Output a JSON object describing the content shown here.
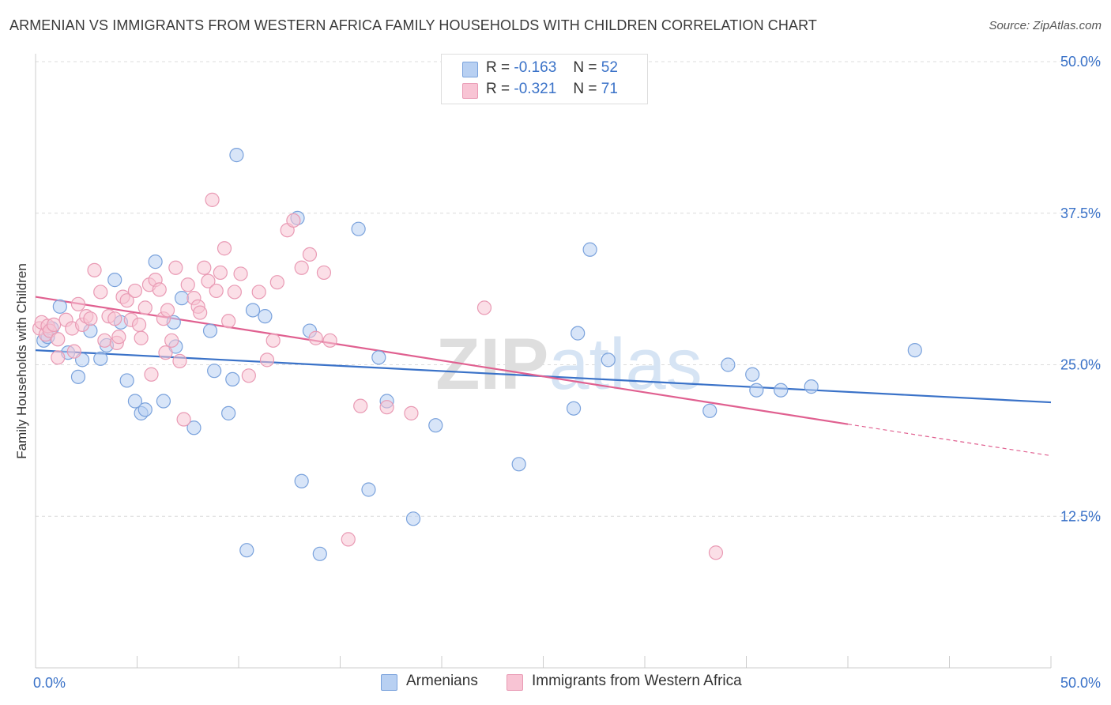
{
  "title": "ARMENIAN VS IMMIGRANTS FROM WESTERN AFRICA FAMILY HOUSEHOLDS WITH CHILDREN CORRELATION CHART",
  "source": "Source: ZipAtlas.com",
  "watermark": "ZIPatlas",
  "stats": [
    {
      "r_label": "R =",
      "r_value": "-0.163",
      "n_label": "N =",
      "n_value": "52",
      "color": "#b8d0f2"
    },
    {
      "r_label": "R =",
      "r_value": "-0.321",
      "n_label": "N =",
      "n_value": "71",
      "color": "#f8c4d4"
    }
  ],
  "legend": [
    {
      "label": "Armenians",
      "color": "#b8d0f2"
    },
    {
      "label": "Immigrants from Western Africa",
      "color": "#f8c4d4"
    }
  ],
  "chart_data": {
    "type": "scatter",
    "xlabel": "",
    "ylabel": "Family Households with Children",
    "xlim": [
      0,
      50
    ],
    "ylim": [
      0,
      50
    ],
    "x_tick_labels": [
      "0.0%",
      "50.0%"
    ],
    "y_ticks": [
      12.5,
      25.0,
      37.5,
      50.0
    ],
    "y_tick_labels": [
      "12.5%",
      "25.0%",
      "37.5%",
      "50.0%"
    ],
    "grid": "horizontal dashed",
    "legend_position": "bottom",
    "series": [
      {
        "name": "Armenians",
        "color": "#3a72c8",
        "fill": "#b8d0f2",
        "points": [
          [
            0.4,
            27.0
          ],
          [
            0.6,
            27.3
          ],
          [
            0.8,
            28.0
          ],
          [
            1.2,
            29.8
          ],
          [
            1.6,
            26.0
          ],
          [
            2.1,
            24.0
          ],
          [
            2.3,
            25.4
          ],
          [
            2.7,
            27.8
          ],
          [
            3.2,
            25.5
          ],
          [
            3.5,
            26.6
          ],
          [
            3.9,
            32.0
          ],
          [
            4.2,
            28.5
          ],
          [
            4.5,
            23.7
          ],
          [
            4.9,
            22.0
          ],
          [
            5.2,
            21.0
          ],
          [
            5.4,
            21.3
          ],
          [
            5.9,
            33.5
          ],
          [
            6.3,
            22.0
          ],
          [
            6.8,
            28.5
          ],
          [
            6.9,
            26.5
          ],
          [
            7.2,
            30.5
          ],
          [
            7.8,
            19.8
          ],
          [
            8.6,
            27.8
          ],
          [
            8.8,
            24.5
          ],
          [
            9.5,
            21.0
          ],
          [
            9.7,
            23.8
          ],
          [
            9.9,
            42.3
          ],
          [
            10.4,
            9.7
          ],
          [
            10.7,
            29.5
          ],
          [
            11.3,
            29.0
          ],
          [
            12.9,
            37.1
          ],
          [
            13.1,
            15.4
          ],
          [
            13.5,
            27.8
          ],
          [
            14.0,
            9.4
          ],
          [
            15.9,
            36.2
          ],
          [
            16.4,
            14.7
          ],
          [
            16.9,
            25.6
          ],
          [
            17.3,
            22.0
          ],
          [
            18.6,
            12.3
          ],
          [
            19.7,
            20.0
          ],
          [
            23.8,
            16.8
          ],
          [
            26.5,
            21.4
          ],
          [
            26.7,
            27.6
          ],
          [
            27.3,
            34.5
          ],
          [
            28.2,
            25.4
          ],
          [
            33.2,
            21.2
          ],
          [
            34.1,
            25.0
          ],
          [
            35.3,
            24.2
          ],
          [
            35.5,
            22.9
          ],
          [
            36.7,
            22.9
          ],
          [
            38.2,
            23.2
          ],
          [
            43.3,
            26.2
          ]
        ]
      },
      {
        "name": "Immigrants from Western Africa",
        "color": "#e06090",
        "fill": "#f8c4d4",
        "points": [
          [
            0.2,
            28.0
          ],
          [
            0.3,
            28.5
          ],
          [
            0.5,
            27.5
          ],
          [
            0.6,
            28.2
          ],
          [
            0.7,
            27.8
          ],
          [
            0.9,
            28.3
          ],
          [
            1.1,
            25.6
          ],
          [
            1.1,
            27.1
          ],
          [
            1.5,
            28.7
          ],
          [
            1.8,
            28.0
          ],
          [
            1.9,
            26.1
          ],
          [
            2.1,
            30.0
          ],
          [
            2.3,
            28.3
          ],
          [
            2.5,
            29.0
          ],
          [
            2.7,
            28.8
          ],
          [
            2.9,
            32.8
          ],
          [
            3.2,
            31.0
          ],
          [
            3.4,
            27.0
          ],
          [
            3.6,
            29.0
          ],
          [
            3.9,
            28.8
          ],
          [
            4.0,
            26.8
          ],
          [
            4.1,
            27.3
          ],
          [
            4.3,
            30.6
          ],
          [
            4.5,
            30.3
          ],
          [
            4.7,
            28.7
          ],
          [
            4.9,
            31.1
          ],
          [
            5.1,
            28.3
          ],
          [
            5.2,
            27.2
          ],
          [
            5.4,
            29.7
          ],
          [
            5.6,
            31.6
          ],
          [
            5.7,
            24.2
          ],
          [
            5.9,
            32.0
          ],
          [
            6.1,
            31.2
          ],
          [
            6.3,
            28.8
          ],
          [
            6.4,
            26.0
          ],
          [
            6.5,
            29.5
          ],
          [
            6.7,
            27.0
          ],
          [
            6.9,
            33.0
          ],
          [
            7.1,
            25.3
          ],
          [
            7.3,
            20.5
          ],
          [
            7.5,
            31.6
          ],
          [
            7.8,
            30.5
          ],
          [
            8.0,
            29.8
          ],
          [
            8.1,
            29.3
          ],
          [
            8.3,
            33.0
          ],
          [
            8.5,
            31.9
          ],
          [
            8.7,
            38.6
          ],
          [
            8.9,
            31.1
          ],
          [
            9.1,
            32.6
          ],
          [
            9.3,
            34.6
          ],
          [
            9.5,
            28.6
          ],
          [
            9.8,
            31.0
          ],
          [
            10.1,
            32.5
          ],
          [
            10.5,
            24.1
          ],
          [
            11.0,
            31.0
          ],
          [
            11.4,
            25.4
          ],
          [
            11.7,
            27.0
          ],
          [
            11.9,
            31.8
          ],
          [
            12.4,
            36.1
          ],
          [
            12.7,
            36.9
          ],
          [
            13.1,
            33.0
          ],
          [
            13.5,
            34.1
          ],
          [
            13.8,
            27.2
          ],
          [
            14.2,
            32.6
          ],
          [
            14.5,
            27.0
          ],
          [
            15.4,
            10.6
          ],
          [
            16.0,
            21.6
          ],
          [
            17.3,
            21.5
          ],
          [
            18.5,
            21.0
          ],
          [
            22.1,
            29.7
          ],
          [
            33.5,
            9.5
          ]
        ]
      }
    ],
    "trend_lines": [
      {
        "series": "Armenians",
        "x": [
          0,
          50
        ],
        "y": [
          26.2,
          21.9
        ],
        "style": "solid"
      },
      {
        "series": "Immigrants from Western Africa",
        "x": [
          0,
          40
        ],
        "y": [
          30.6,
          20.1
        ],
        "style": "solid"
      },
      {
        "series": "Immigrants from Western Africa",
        "x": [
          40,
          50
        ],
        "y": [
          20.1,
          17.5
        ],
        "style": "dashed"
      }
    ]
  }
}
